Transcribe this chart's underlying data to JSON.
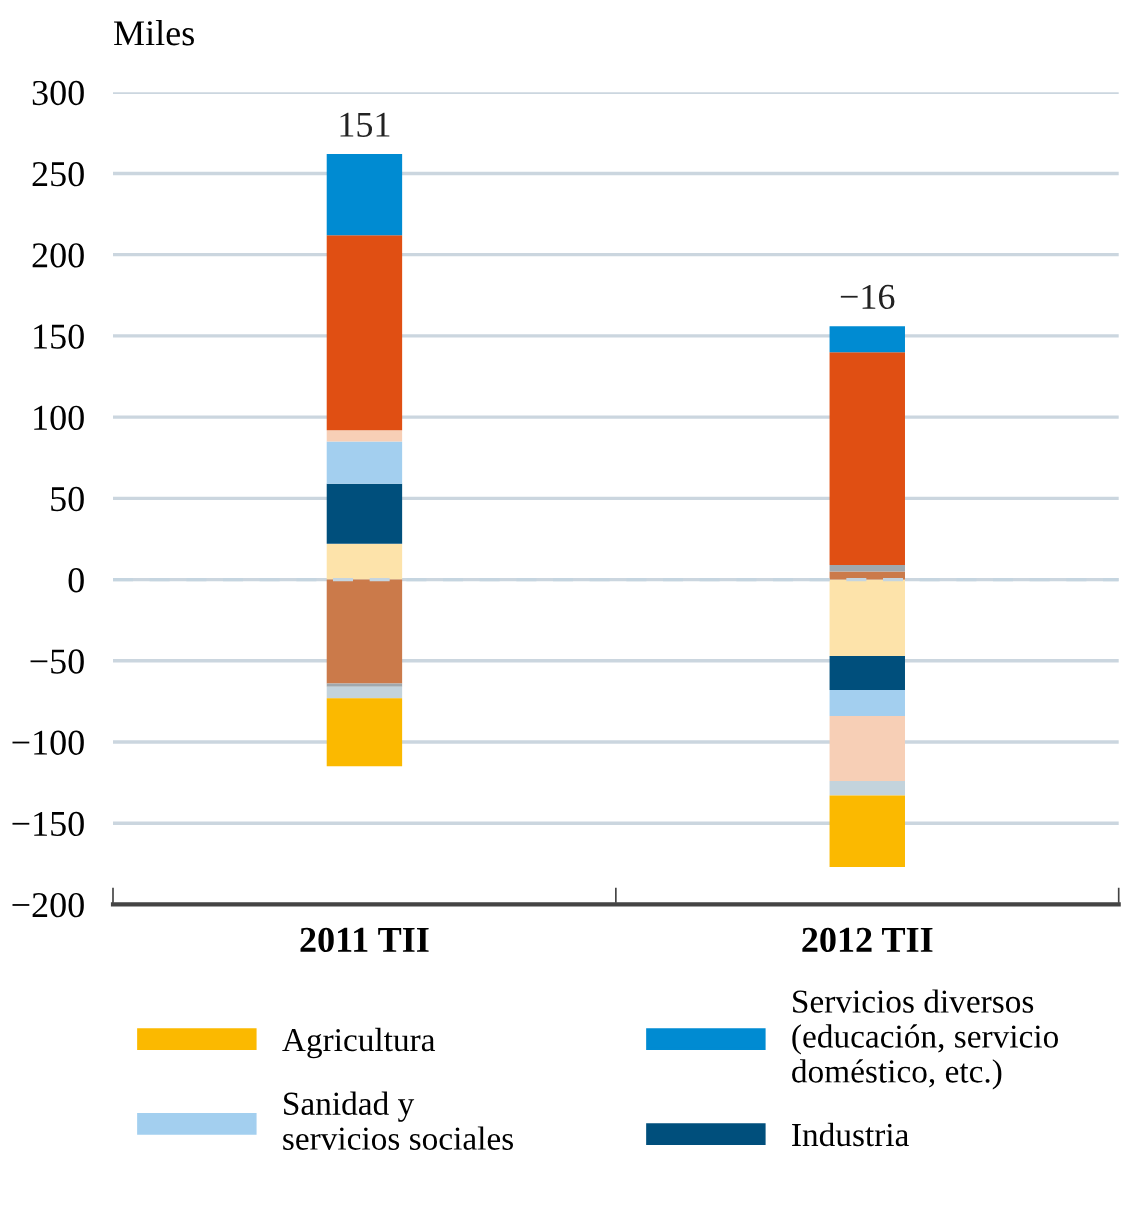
{
  "chart_data": {
    "type": "bar",
    "stacked": true,
    "ylabel": "Miles",
    "categories": [
      "2011 TII",
      "2012 TII"
    ],
    "series": [
      {
        "color": "#fde3aa",
        "values": [
          22,
          -47
        ]
      },
      {
        "name": "Industria",
        "color": "#004f7c",
        "values": [
          37,
          -21
        ]
      },
      {
        "name": "Sanidad y\nservicios sociales",
        "color": "#a3cfef",
        "values": [
          26,
          -16
        ]
      },
      {
        "color": "#f7cfb6",
        "values": [
          7,
          -40
        ]
      },
      {
        "color": "#cb7a4a",
        "values": [
          -64,
          5
        ]
      },
      {
        "color": "#a0a8ad",
        "values": [
          -2,
          4
        ]
      },
      {
        "color": "#e04f13",
        "values": [
          120,
          131
        ]
      },
      {
        "name": "Servicios diversos\n(educación, servicio\ndoméstico, etc.)",
        "color": "#008bd2",
        "values": [
          50,
          16
        ]
      },
      {
        "color": "#c3d3dc",
        "values": [
          -7,
          -9
        ]
      },
      {
        "name": "Agricultura",
        "color": "#fbb900",
        "values": [
          -42,
          -44
        ]
      }
    ],
    "totals": [
      "151",
      "−16"
    ],
    "ylim": [
      -200,
      300
    ],
    "yticks": [
      -200,
      -150,
      -100,
      -50,
      0,
      50,
      100,
      150,
      200,
      250,
      300
    ],
    "grid": "y",
    "legend": "bottom",
    "ref_lines": [
      {
        "axis": "y",
        "value": 0,
        "color": "#c5d5e0",
        "line_style": "dashed"
      }
    ]
  }
}
